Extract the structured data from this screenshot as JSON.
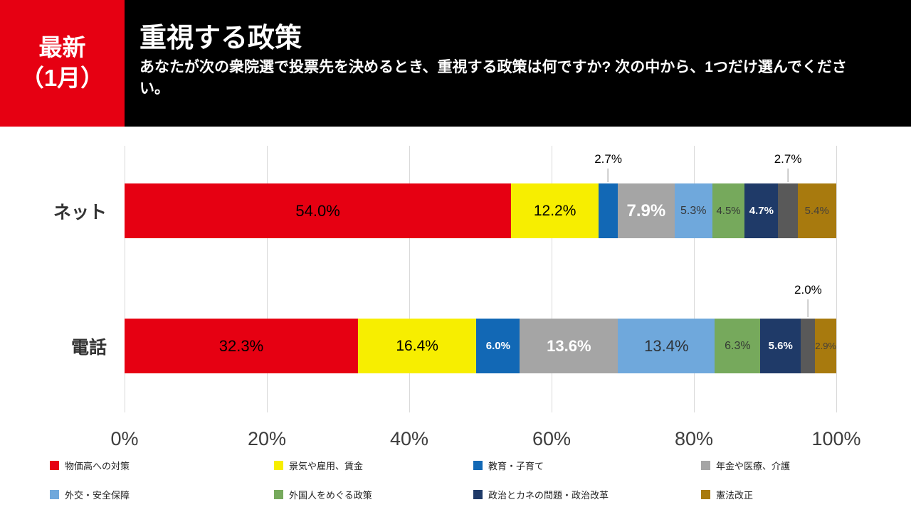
{
  "header": {
    "badge_line1": "最新",
    "badge_line2": "（1月）",
    "badge_bg": "#e60012",
    "title": "重視する政策",
    "subtitle": "あなたが次の衆院選で投票先を決めるとき、重視する政策は何ですか? 次の中から、1つだけ選んでください。"
  },
  "chart_data": {
    "type": "bar",
    "orientation": "horizontal",
    "stacked": true,
    "x_axis": {
      "min": 0,
      "max": 100,
      "ticks": [
        "0%",
        "20%",
        "40%",
        "60%",
        "80%",
        "100%"
      ],
      "grid": true
    },
    "categories": [
      "ネット",
      "電話"
    ],
    "rows": [
      {
        "label": "ネット",
        "segments": [
          {
            "name": "物価高への対策",
            "value": 54.0,
            "label": "54.0%",
            "color": "#e60012",
            "label_color": "#000000",
            "label_size": 22,
            "label_bold": false,
            "callout": false
          },
          {
            "name": "景気や雇用、賃金",
            "value": 12.2,
            "label": "12.2%",
            "color": "#f7ee00",
            "label_color": "#000000",
            "label_size": 21,
            "label_bold": false,
            "callout": false
          },
          {
            "name": "教育・子育て",
            "value": 2.7,
            "label": "2.7%",
            "color": "#1268b5",
            "label_color": "#000000",
            "label_size": 17,
            "label_bold": false,
            "callout": true
          },
          {
            "name": "年金や医療、介護",
            "value": 7.9,
            "label": "7.9%",
            "color": "#a5a5a5",
            "label_color": "#ffffff",
            "label_size": 24,
            "label_bold": true,
            "callout": false
          },
          {
            "name": "外交・安全保障",
            "value": 5.3,
            "label": "5.3%",
            "color": "#6fa8dc",
            "label_color": "#35383b",
            "label_size": 16,
            "label_bold": false,
            "callout": false
          },
          {
            "name": "外国人をめぐる政策",
            "value": 4.5,
            "label": "4.5%",
            "color": "#76a95c",
            "label_color": "#353b35",
            "label_size": 15,
            "label_bold": false,
            "callout": false
          },
          {
            "name": "政治とカネの問題・政治改革",
            "value": 4.7,
            "label": "4.7%",
            "color": "#1f3a68",
            "label_color": "#ffffff",
            "label_size": 15,
            "label_bold": true,
            "callout": false
          },
          {
            "name": "",
            "value": 2.7,
            "label": "2.7%",
            "color": "#595959",
            "label_color": "#000000",
            "label_size": 17,
            "label_bold": false,
            "callout": true
          },
          {
            "name": "憲法改正",
            "value": 5.4,
            "label": "5.4%",
            "color": "#a87a0e",
            "label_color": "#45403a",
            "label_size": 15,
            "label_bold": false,
            "callout": false
          }
        ]
      },
      {
        "label": "電話",
        "segments": [
          {
            "name": "物価高への対策",
            "value": 32.3,
            "label": "32.3%",
            "color": "#e60012",
            "label_color": "#000000",
            "label_size": 22,
            "label_bold": false,
            "callout": false
          },
          {
            "name": "景気や雇用、賃金",
            "value": 16.4,
            "label": "16.4%",
            "color": "#f7ee00",
            "label_color": "#000000",
            "label_size": 21,
            "label_bold": false,
            "callout": false
          },
          {
            "name": "教育・子育て",
            "value": 6.0,
            "label": "6.0%",
            "color": "#1268b5",
            "label_color": "#ffffff",
            "label_size": 15,
            "label_bold": true,
            "callout": false
          },
          {
            "name": "年金や医療、介護",
            "value": 13.6,
            "label": "13.6%",
            "color": "#a5a5a5",
            "label_color": "#ffffff",
            "label_size": 22,
            "label_bold": true,
            "callout": false
          },
          {
            "name": "外交・安全保障",
            "value": 13.4,
            "label": "13.4%",
            "color": "#6fa8dc",
            "label_color": "#2e3338",
            "label_size": 22,
            "label_bold": false,
            "callout": false
          },
          {
            "name": "外国人をめぐる政策",
            "value": 6.3,
            "label": "6.3%",
            "color": "#76a95c",
            "label_color": "#353b35",
            "label_size": 16,
            "label_bold": false,
            "callout": false
          },
          {
            "name": "政治とカネの問題・政治改革",
            "value": 5.6,
            "label": "5.6%",
            "color": "#1f3a68",
            "label_color": "#ffffff",
            "label_size": 15,
            "label_bold": true,
            "callout": false
          },
          {
            "name": "",
            "value": 2.0,
            "label": "2.0%",
            "color": "#595959",
            "label_color": "#000000",
            "label_size": 17,
            "label_bold": false,
            "callout": true
          },
          {
            "name": "憲法改正",
            "value": 2.9,
            "label": "2.9%",
            "color": "#a87a0e",
            "label_color": "#45403a",
            "label_size": 13,
            "label_bold": false,
            "callout": false
          }
        ]
      }
    ],
    "legend": [
      {
        "label": "物価高への対策",
        "color": "#e60012"
      },
      {
        "label": "景気や雇用、賃金",
        "color": "#f7ee00"
      },
      {
        "label": "教育・子育て",
        "color": "#1268b5"
      },
      {
        "label": "年金や医療、介護",
        "color": "#a5a5a5"
      },
      {
        "label": "外交・安全保障",
        "color": "#6fa8dc"
      },
      {
        "label": "外国人をめぐる政策",
        "color": "#76a95c"
      },
      {
        "label": "政治とカネの問題・政治改革",
        "color": "#1f3a68"
      },
      {
        "label": "憲法改正",
        "color": "#a87a0e"
      }
    ],
    "legend_position": "bottom"
  }
}
